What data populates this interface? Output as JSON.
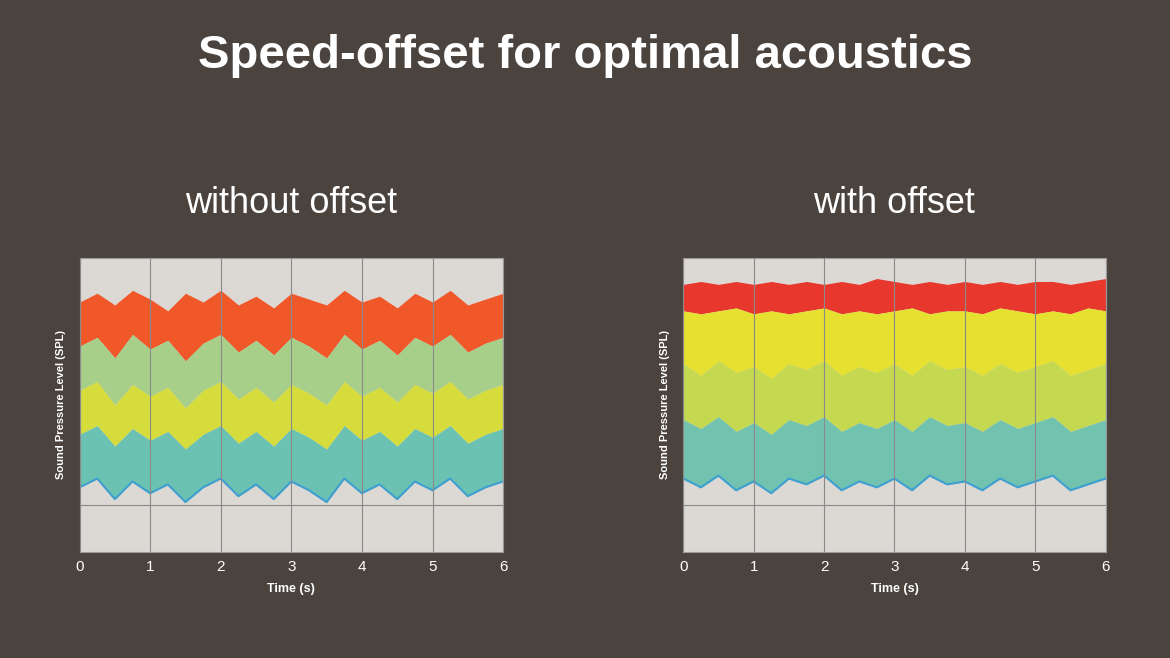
{
  "title": "Speed-offset for optimal acoustics",
  "chart_data": [
    {
      "type": "area",
      "title": "without offset",
      "x_label": "Time (s)",
      "y_label": "Sound Pressure Level (SPL)",
      "x": [
        0,
        0.25,
        0.5,
        0.75,
        1,
        1.25,
        1.5,
        1.75,
        2,
        2.25,
        2.5,
        2.75,
        3,
        3.25,
        3.5,
        3.75,
        4,
        4.25,
        4.5,
        4.75,
        5,
        5.25,
        5.5,
        5.75,
        6
      ],
      "series": [
        {
          "color": "#f0582a",
          "values": [
            85,
            88,
            84,
            89,
            86,
            82,
            88,
            85,
            89,
            84,
            87,
            83,
            88,
            86,
            84,
            89,
            85,
            87,
            83,
            88,
            85,
            89,
            84,
            86,
            88
          ]
        },
        {
          "color": "#a8cf8a",
          "values": [
            70,
            73,
            66,
            74,
            69,
            72,
            65,
            71,
            74,
            68,
            72,
            67,
            73,
            70,
            66,
            74,
            69,
            72,
            67,
            73,
            70,
            74,
            68,
            71,
            73
          ]
        },
        {
          "color": "#d6dc3c",
          "values": [
            55,
            58,
            50,
            57,
            53,
            56,
            49,
            55,
            58,
            52,
            56,
            51,
            57,
            54,
            50,
            58,
            53,
            56,
            51,
            57,
            54,
            58,
            52,
            55,
            57
          ]
        },
        {
          "color": "#6cc2b2",
          "values": [
            40,
            43,
            36,
            42,
            38,
            41,
            35,
            40,
            43,
            37,
            41,
            36,
            42,
            39,
            35,
            43,
            38,
            41,
            36,
            42,
            39,
            43,
            37,
            40,
            42
          ]
        },
        {
          "color": "#3e9fd0",
          "values": [
            22,
            25,
            18,
            24,
            20,
            23,
            17,
            22,
            25,
            19,
            23,
            18,
            24,
            21,
            17,
            25,
            20,
            23,
            18,
            24,
            21,
            25,
            19,
            22,
            24
          ]
        }
      ],
      "xlim": [
        0,
        6
      ],
      "xticks": [
        0,
        1,
        2,
        3,
        4,
        5,
        6
      ],
      "ylim": [
        0,
        100
      ],
      "yticks": [
        16
      ],
      "grid": true,
      "tick_labels": "x"
    },
    {
      "type": "area",
      "title": "with offset",
      "x_label": "Time (s)",
      "y_label": "Sound Pressure Level (SPL)",
      "x": [
        0,
        0.25,
        0.5,
        0.75,
        1,
        1.25,
        1.5,
        1.75,
        2,
        2.25,
        2.5,
        2.75,
        3,
        3.25,
        3.5,
        3.75,
        4,
        4.25,
        4.5,
        4.75,
        5,
        5.25,
        5.5,
        5.75,
        6
      ],
      "series": [
        {
          "color": "#e8382e",
          "values": [
            91,
            92,
            91,
            92,
            91,
            92,
            91,
            92,
            91,
            92,
            91,
            93,
            92,
            91,
            92,
            91,
            92,
            91,
            92,
            91,
            92,
            92,
            91,
            92,
            93
          ]
        },
        {
          "color": "#e6e030",
          "values": [
            82,
            81,
            82,
            83,
            81,
            82,
            81,
            82,
            83,
            81,
            82,
            81,
            82,
            83,
            81,
            82,
            82,
            81,
            83,
            82,
            81,
            82,
            81,
            83,
            82
          ]
        },
        {
          "color": "#c4d850",
          "values": [
            64,
            60,
            65,
            61,
            63,
            59,
            64,
            62,
            65,
            60,
            63,
            61,
            64,
            60,
            65,
            62,
            63,
            60,
            64,
            61,
            63,
            65,
            60,
            62,
            64
          ]
        },
        {
          "color": "#72c2b0",
          "values": [
            45,
            42,
            46,
            41,
            44,
            40,
            45,
            43,
            46,
            41,
            44,
            42,
            45,
            41,
            46,
            43,
            44,
            41,
            45,
            42,
            44,
            46,
            41,
            43,
            45
          ]
        },
        {
          "color": "#3ea0d0",
          "values": [
            25,
            22,
            26,
            21,
            24,
            20,
            25,
            23,
            26,
            21,
            24,
            22,
            25,
            21,
            26,
            23,
            24,
            21,
            25,
            22,
            24,
            26,
            21,
            23,
            25
          ]
        }
      ],
      "xlim": [
        0,
        6
      ],
      "xticks": [
        0,
        1,
        2,
        3,
        4,
        5,
        6
      ],
      "ylim": [
        0,
        100
      ],
      "yticks": [
        16
      ],
      "grid": true,
      "tick_labels": "x"
    }
  ]
}
